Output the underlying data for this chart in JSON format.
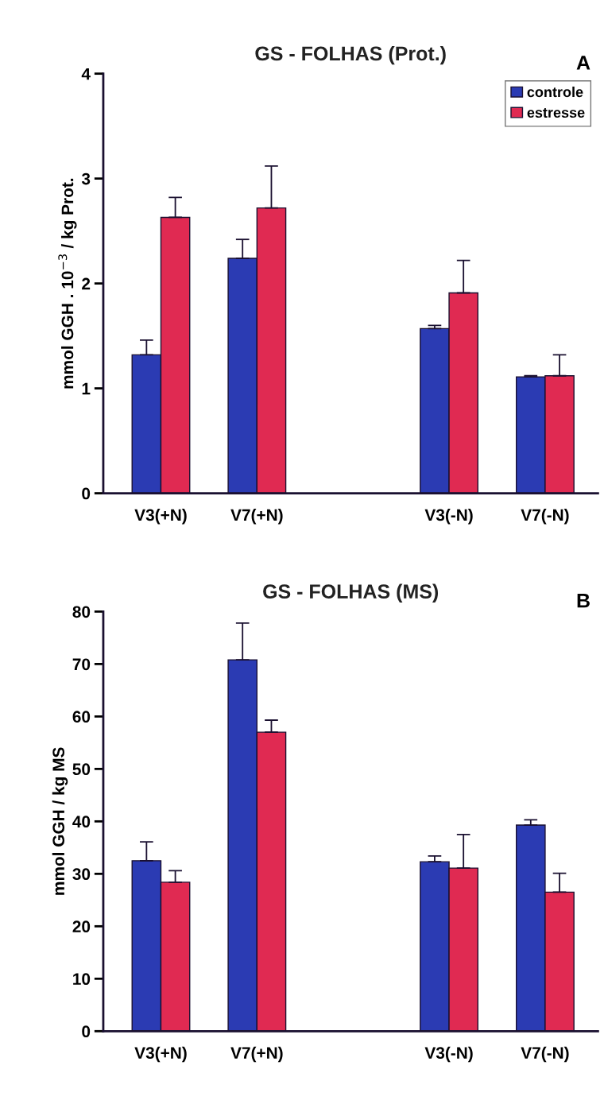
{
  "chart_data": [
    {
      "type": "bar",
      "title": "GS - FOLHAS (Prot.)",
      "ylabel": "mmol GGH . 10$^{−3}$ / kg Prot.",
      "annotations": [
        "A"
      ],
      "categories": [
        "V3(+N)",
        "V7(+N)",
        null,
        "V3(-N)",
        "V7(-N)"
      ],
      "series": [
        {
          "name": "controle",
          "color": "#2b3bb3",
          "values": [
            1.32,
            2.24,
            null,
            1.57,
            1.11
          ],
          "errors": [
            [
              1.32,
              1.46
            ],
            [
              2.24,
              2.42
            ],
            null,
            [
              1.57,
              1.6
            ],
            [
              1.11,
              1.12
            ]
          ]
        },
        {
          "name": "estresse",
          "color": "#e02a52",
          "values": [
            2.63,
            2.72,
            null,
            1.91,
            1.12
          ],
          "errors": [
            [
              2.63,
              2.82
            ],
            [
              2.72,
              3.12
            ],
            null,
            [
              1.91,
              2.22
            ],
            [
              1.12,
              1.32
            ]
          ]
        }
      ],
      "ylim": [
        0,
        4
      ],
      "yticks": [
        0,
        1,
        2,
        3,
        4
      ],
      "grid": false,
      "legend": "top right"
    },
    {
      "type": "bar",
      "title": "GS - FOLHAS (MS)",
      "ylabel": "mmol GGH / kg MS",
      "annotations": [
        "B"
      ],
      "categories": [
        "V3(+N)",
        "V7(+N)",
        null,
        "V3(-N)",
        "V7(-N)"
      ],
      "series": [
        {
          "color": "#2b3bb3",
          "values": [
            32.5,
            70.8,
            null,
            32.3,
            39.3
          ],
          "errors": [
            [
              32.5,
              36.1
            ],
            [
              70.8,
              77.8
            ],
            null,
            [
              32.3,
              33.4
            ],
            [
              39.3,
              40.3
            ]
          ]
        },
        {
          "color": "#e02a52",
          "values": [
            28.4,
            57.0,
            null,
            31.1,
            26.5
          ],
          "errors": [
            [
              28.4,
              30.6
            ],
            [
              57.0,
              59.3
            ],
            null,
            [
              31.1,
              37.5
            ],
            [
              26.5,
              30.1
            ]
          ]
        }
      ],
      "ylim": [
        0,
        80
      ],
      "yticks": [
        0,
        10,
        20,
        30,
        40,
        50,
        60,
        70,
        80
      ],
      "grid": false,
      "legend": false
    }
  ]
}
